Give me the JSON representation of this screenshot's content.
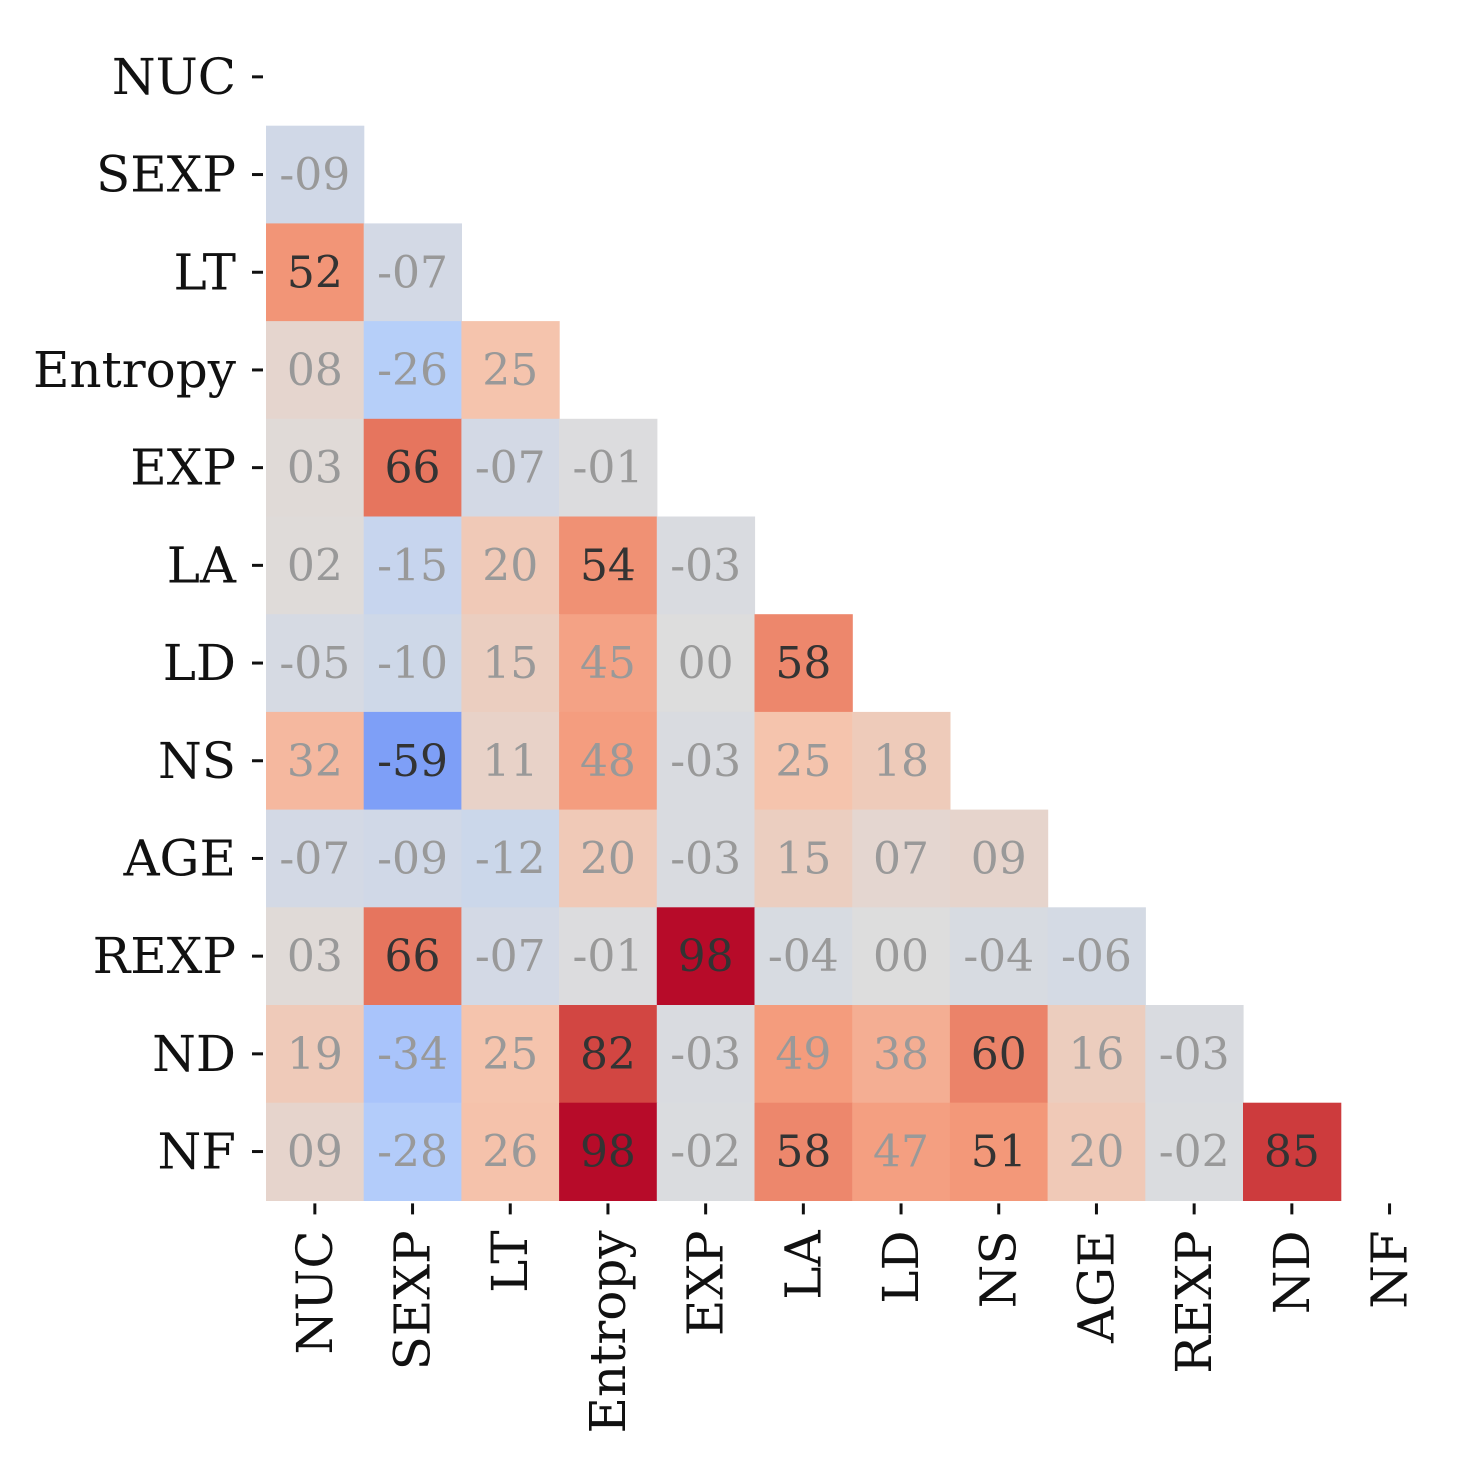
{
  "chart_data": {
    "type": "heatmap",
    "title": "",
    "xlabel": "",
    "ylabel": "",
    "colormap": "coolwarm",
    "value_range": [
      -100,
      100
    ],
    "mask": "upper-triangle-including-diagonal",
    "labels": [
      "NUC",
      "SEXP",
      "LT",
      "Entropy",
      "EXP",
      "LA",
      "LD",
      "NS",
      "AGE",
      "REXP",
      "ND",
      "NF"
    ],
    "cell_text": [
      [],
      [
        "-09"
      ],
      [
        "52",
        "-07"
      ],
      [
        "08",
        "-26",
        "25"
      ],
      [
        "03",
        "66",
        "-07",
        "-01"
      ],
      [
        "02",
        "-15",
        "20",
        "54",
        "-03"
      ],
      [
        "-05",
        "-10",
        "15",
        "45",
        "00",
        "58"
      ],
      [
        "32",
        "-59",
        "11",
        "48",
        "-03",
        "25",
        "18"
      ],
      [
        "-07",
        "-09",
        "-12",
        "20",
        "-03",
        "15",
        "07",
        "09"
      ],
      [
        "03",
        "66",
        "-07",
        "-01",
        "98",
        "-04",
        "00",
        "-04",
        "-06"
      ],
      [
        "19",
        "-34",
        "25",
        "82",
        "-03",
        "49",
        "38",
        "60",
        "16",
        "-03"
      ],
      [
        "09",
        "-28",
        "26",
        "98",
        "-02",
        "58",
        "47",
        "51",
        "20",
        "-02",
        "85"
      ]
    ],
    "values": [
      [],
      [
        -9
      ],
      [
        52,
        -7
      ],
      [
        8,
        -26,
        25
      ],
      [
        3,
        66,
        -7,
        -1
      ],
      [
        2,
        -15,
        20,
        54,
        -3
      ],
      [
        -5,
        -10,
        15,
        45,
        0,
        58
      ],
      [
        32,
        -59,
        11,
        48,
        -3,
        25,
        18
      ],
      [
        -7,
        -9,
        -12,
        20,
        -3,
        15,
        7,
        9
      ],
      [
        3,
        66,
        -7,
        -1,
        98,
        -4,
        0,
        -4,
        -6
      ],
      [
        19,
        -34,
        25,
        82,
        -3,
        49,
        38,
        60,
        16,
        -3
      ],
      [
        9,
        -28,
        26,
        98,
        -2,
        58,
        47,
        51,
        20,
        -2,
        85
      ]
    ],
    "grid": false,
    "legend": "none"
  }
}
